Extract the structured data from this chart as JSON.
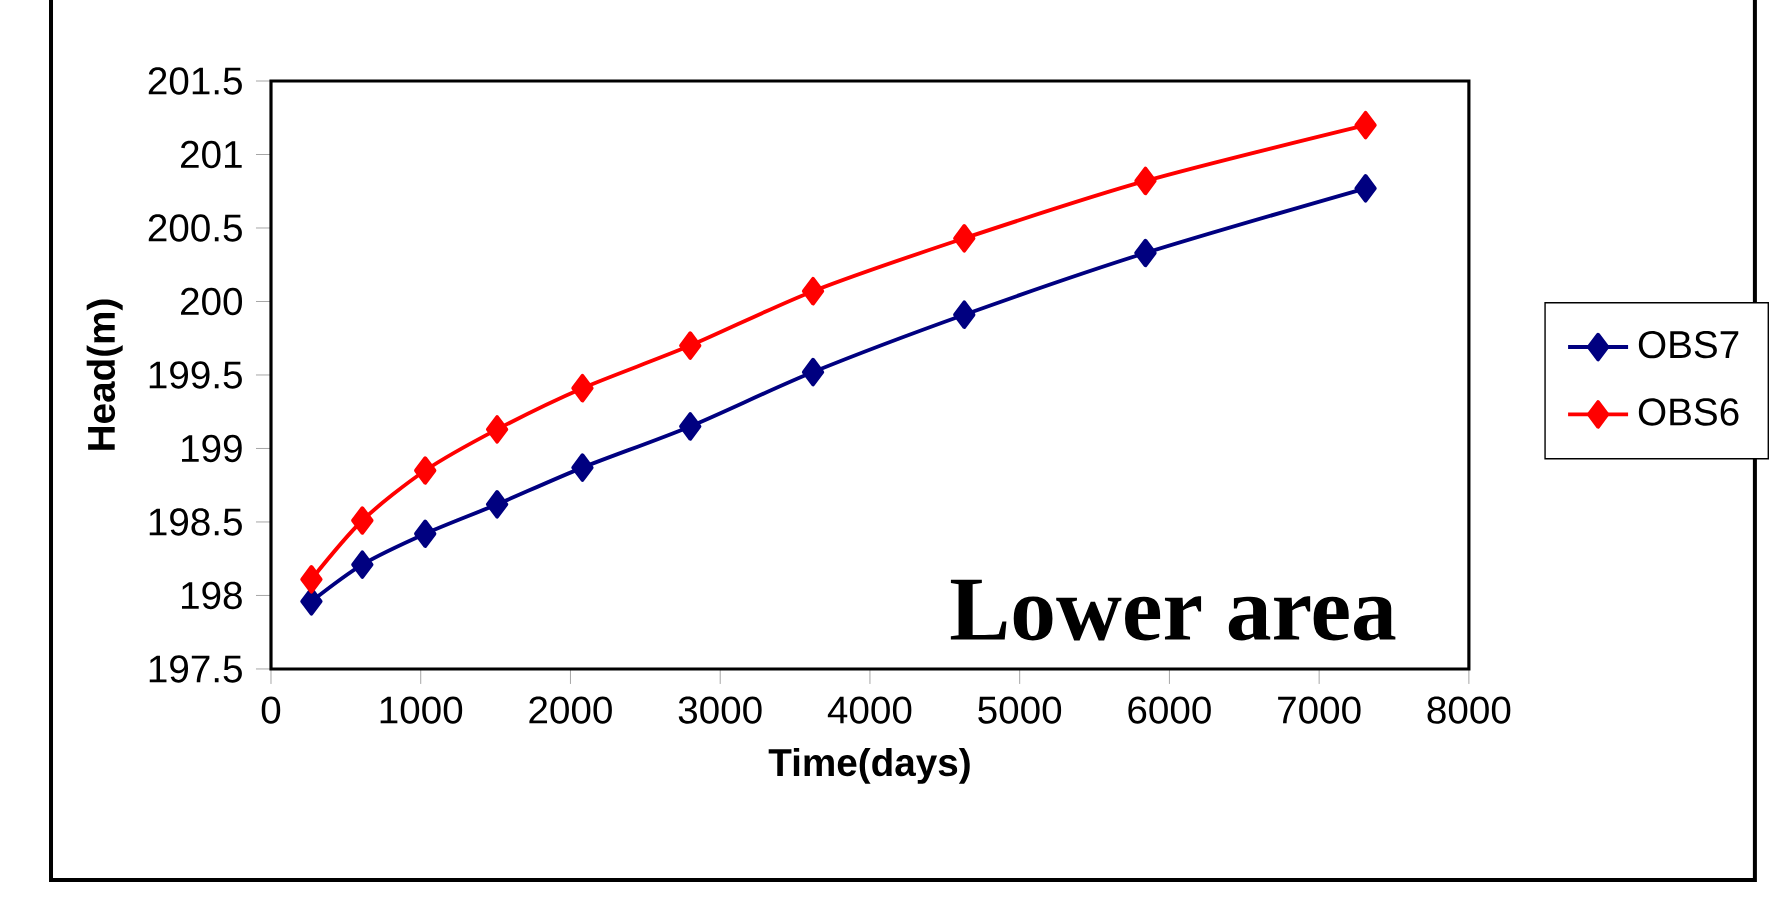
{
  "chart_data": {
    "type": "line",
    "xlabel": "Time(days)",
    "ylabel": "Head(m)",
    "annotations": [
      "Lower area"
    ],
    "xlim": [
      0,
      8000
    ],
    "xticks": [
      0,
      1000,
      2000,
      3000,
      4000,
      5000,
      6000,
      7000,
      8000
    ],
    "ylim": [
      197.5,
      201.5
    ],
    "yticks": [
      197.5,
      198,
      198.5,
      199,
      199.5,
      200,
      200.5,
      201,
      201.5
    ],
    "x": [
      270,
      610,
      1030,
      1510,
      2080,
      2800,
      3620,
      4630,
      5840,
      7310
    ],
    "series": [
      {
        "name": "OBS7",
        "color": "#000080",
        "values": [
          197.96,
          198.21,
          198.42,
          198.62,
          198.87,
          199.15,
          199.52,
          199.91,
          200.33,
          200.77
        ]
      },
      {
        "name": "OBS6",
        "color": "#ff0000",
        "values": [
          198.11,
          198.51,
          198.85,
          199.13,
          199.41,
          199.7,
          200.07,
          200.43,
          200.82,
          201.2
        ]
      }
    ],
    "marker": "diamond",
    "line_style": "solid",
    "grid": false,
    "legend": "right"
  }
}
